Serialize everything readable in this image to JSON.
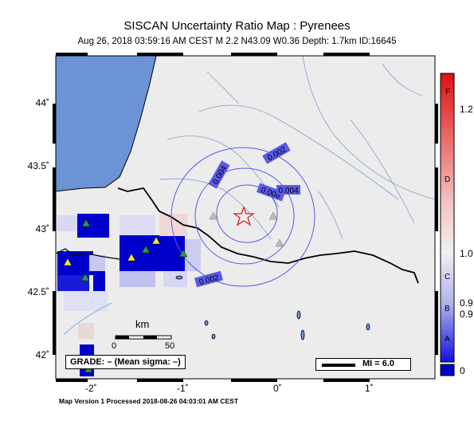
{
  "title": "SISCAN Uncertainty Ratio Map : Pyrenees",
  "subtitle": "Aug 26, 2018 03:59:16 AM CEST   M 2.2   N43.09 W0.36   Depth: 1.7km   ID:16645",
  "footer": "Map Version 1 Processed 2018-08-26 04:03:01 AM CEST",
  "grade_label": "GRADE: – (Mean sigma: –)",
  "mi_label": "MI = 6.0",
  "scale": {
    "unit": "km",
    "zero": "0",
    "max": "50"
  },
  "lat_labels": [
    "44˚",
    "43.5˚",
    "43˚",
    "42.5˚",
    "42˚"
  ],
  "lon_labels": [
    "-2˚",
    "-1˚",
    "0˚",
    "1˚"
  ],
  "contour_labels": [
    "0.002",
    "0.004",
    "0.006",
    "0.004",
    "0.002"
  ],
  "colorbar": {
    "grades": [
      "F",
      "D",
      "C",
      "B",
      "A"
    ],
    "values": [
      "1.2",
      "1.0",
      "0.9",
      "0.9",
      "0"
    ]
  },
  "colors": {
    "sea": "#6b93d6",
    "land": "#ececec",
    "border": "#000000",
    "river": "#7f9fd0",
    "contour": "#5a5ae8",
    "epicenter": "#d92020",
    "station_active": "#2a9a3a",
    "station_new": "#f2e23a",
    "station_inactive": "#bbbbbb",
    "high_ratio": "#0000cc"
  },
  "epicenter": {
    "lat": 43.09,
    "lon": -0.36,
    "symbol": "star"
  }
}
